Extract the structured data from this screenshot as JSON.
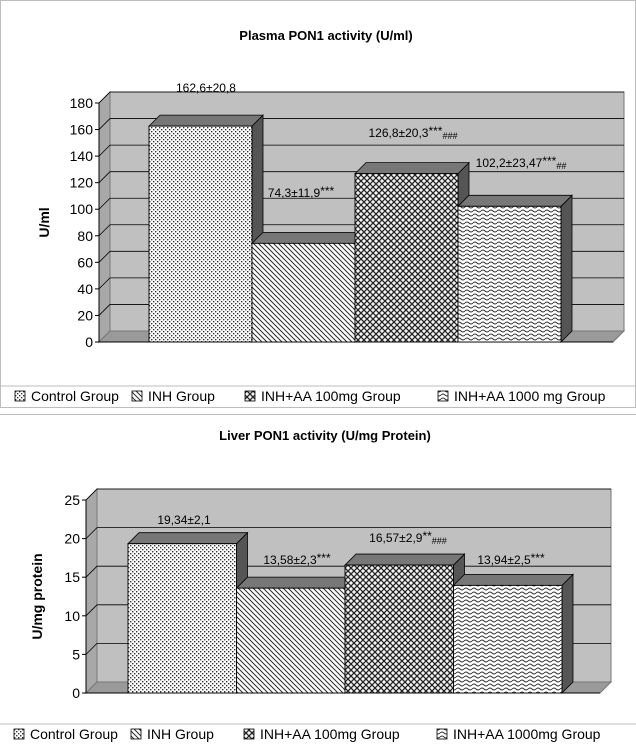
{
  "charts": [
    {
      "title": "Plasma PON1 activity (U/ml)",
      "ylabel": "U/ml",
      "legend": [
        "Control Group",
        "INH Group",
        "INH+AA 100mg Group",
        "INH+AA 1000 mg Group"
      ],
      "bar_labels": [
        {
          "main": "162,6±20,8",
          "stars": "",
          "hash": ""
        },
        {
          "main": "74,3±11,9",
          "stars": "***",
          "hash": ""
        },
        {
          "main": "126,8±20,3",
          "stars": "***",
          "hash": "###"
        },
        {
          "main": "102,2±23,47",
          "stars": "***",
          "hash": "##"
        }
      ]
    },
    {
      "title": "Liver PON1 activity (U/mg Protein)",
      "ylabel": "U/mg protein",
      "legend": [
        "Control Group",
        "INH Group",
        "INH+AA 100mg Group",
        "INH+AA 1000mg Group"
      ],
      "bar_labels": [
        {
          "main": "19,34±2,1",
          "stars": "",
          "hash": ""
        },
        {
          "main": "13,58±2,3",
          "stars": "***",
          "hash": ""
        },
        {
          "main": "16,57±2,9",
          "stars": "**",
          "hash": "###"
        },
        {
          "main": "13,94±2,5",
          "stars": "***",
          "hash": ""
        }
      ]
    }
  ],
  "chart_data": [
    {
      "type": "bar",
      "title": "Plasma PON1 activity (U/ml)",
      "ylabel": "U/ml",
      "xlabel": "",
      "categories": [
        "Control Group",
        "INH Group",
        "INH+AA 100mg Group",
        "INH+AA 1000 mg Group"
      ],
      "values": [
        162.6,
        74.3,
        126.8,
        102.2
      ],
      "ylim": [
        0,
        180
      ],
      "yticks": [
        0,
        20,
        40,
        60,
        80,
        100,
        120,
        140,
        160,
        180
      ],
      "grid": true,
      "legend_position": "bottom",
      "colors": {
        "plot_bg": "#c0c0c0",
        "bar_fill": "#ffffff",
        "bar_pattern": "#444444",
        "side_dark": "#555555"
      }
    },
    {
      "type": "bar",
      "title": "Liver PON1 activity (U/mg Protein)",
      "ylabel": "U/mg protein",
      "xlabel": "",
      "categories": [
        "Control Group",
        "INH Group",
        "INH+AA 100mg Group",
        "INH+AA 1000mg Group"
      ],
      "values": [
        19.34,
        13.58,
        16.57,
        13.94
      ],
      "ylim": [
        0,
        25
      ],
      "yticks": [
        0,
        5,
        10,
        15,
        20,
        25
      ],
      "grid": true,
      "legend_position": "bottom",
      "colors": {
        "plot_bg": "#c0c0c0",
        "bar_fill": "#ffffff",
        "bar_pattern": "#444444",
        "side_dark": "#555555"
      }
    }
  ]
}
